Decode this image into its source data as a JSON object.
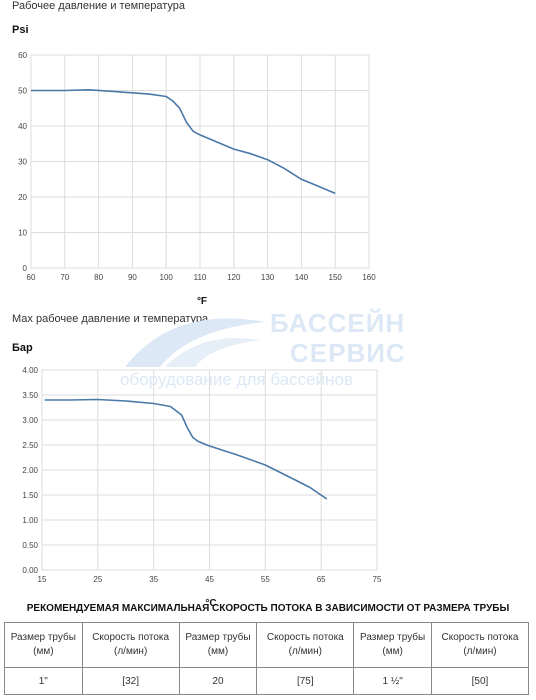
{
  "chart1": {
    "heading": "Рабочее давление и температура",
    "ylabel": "Psi",
    "xlabel": "°F",
    "line_color": "#4a78a8"
  },
  "chart2": {
    "heading": "Мах рабочее давление и температура",
    "ylabel": "Бар",
    "xlabel": "°C",
    "line_color": "#4a78a8"
  },
  "watermark": {
    "line1": "БАССЕЙН",
    "line2": "СЕРВИС",
    "line3": "оборудование для бассейнов"
  },
  "table": {
    "title": "РЕКОМЕНДУЕМАЯ МАКСИМАЛЬНАЯ СКОРОСТЬ ПОТОКА В ЗАВИСИМОСТИ ОТ РАЗМЕРА ТРУБЫ",
    "headers": [
      "Размер трубы (мм)",
      "Скорость потока (л/мин)",
      "Размер трубы (мм)",
      "Скорость потока (л/мин)",
      "Размер трубы (мм)",
      "Скорость потока (л/мин)"
    ],
    "values": [
      "1\"",
      "[32]",
      "20",
      "[75]",
      "1 ½\"",
      "[50]"
    ]
  },
  "chart_data": [
    {
      "type": "line",
      "title": "Рабочее давление и температура",
      "xlabel": "°F",
      "ylabel": "Psi",
      "xlim": [
        60,
        160
      ],
      "ylim": [
        0,
        60
      ],
      "xticks": [
        "60",
        "70",
        "80",
        "90",
        "100",
        "110",
        "120",
        "130",
        "140",
        "150",
        "160"
      ],
      "yticks": [
        "0",
        "10",
        "20",
        "30",
        "40",
        "50",
        "60"
      ],
      "grid": true,
      "x": [
        60,
        70,
        77,
        85,
        95,
        100,
        102,
        104,
        106,
        108,
        110,
        115,
        120,
        125,
        130,
        135,
        140,
        145,
        150
      ],
      "y": [
        50,
        50,
        50.2,
        49.7,
        49,
        48.3,
        47,
        45,
        41,
        38.5,
        37.5,
        35.5,
        33.5,
        32.2,
        30.5,
        28,
        25,
        23,
        21
      ]
    },
    {
      "type": "line",
      "title": "Мах рабочее давление и температура",
      "xlabel": "°C",
      "ylabel": "Бар",
      "xlim": [
        15,
        75
      ],
      "ylim": [
        0,
        4
      ],
      "xticks": [
        "15",
        "25",
        "35",
        "45",
        "55",
        "65",
        "75"
      ],
      "yticks": [
        "0.00",
        "0.50",
        "1.00",
        "1.50",
        "2.00",
        "2.50",
        "3.00",
        "3.50",
        "4.00"
      ],
      "grid": true,
      "x": [
        15.5,
        20,
        25,
        30,
        35,
        38,
        40,
        41,
        42,
        43,
        45,
        50,
        55,
        60,
        63,
        66
      ],
      "y": [
        3.4,
        3.4,
        3.41,
        3.38,
        3.33,
        3.27,
        3.1,
        2.85,
        2.65,
        2.57,
        2.48,
        2.3,
        2.1,
        1.82,
        1.65,
        1.42
      ]
    }
  ]
}
